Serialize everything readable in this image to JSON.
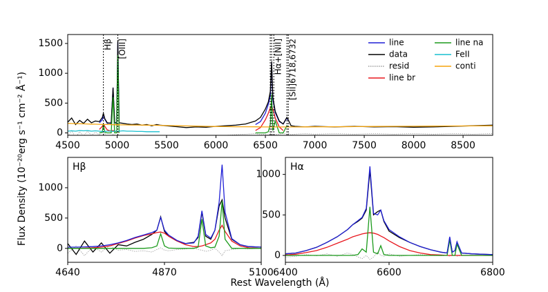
{
  "figure": {
    "ylabel": "Flux Density (10⁻²⁰erg s⁻¹ cm⁻² Å⁻¹)",
    "xlabel": "Rest Wavelength (Å)"
  },
  "chart_data": [
    {
      "type": "line",
      "legend": "upper right",
      "xlim": [
        4500,
        8800
      ],
      "xticks": [
        4500,
        5000,
        5500,
        6000,
        6500,
        7000,
        7500,
        8000,
        8500
      ],
      "ylim": [
        -40,
        1650
      ],
      "yticks": [
        0,
        500,
        1000,
        1500
      ],
      "annotations": [
        {
          "label": "Hβ",
          "x": [
            4861
          ]
        },
        {
          "label": "[OIII]",
          "x": [
            5007
          ]
        },
        {
          "label": "Hα+[NII]",
          "x": [
            6549,
            6563,
            6585
          ]
        },
        {
          "label": "[SII]6718,6732",
          "x": [
            6718,
            6732
          ]
        }
      ],
      "x": [
        4500,
        4540,
        4580,
        4620,
        4660,
        4700,
        4740,
        4780,
        4820,
        4850,
        4861,
        4875,
        4900,
        4940,
        4959,
        4975,
        4995,
        5007,
        5020,
        5060,
        5100,
        5150,
        5200,
        5250,
        5300,
        5350,
        5400,
        5430,
        5700,
        5800,
        5900,
        6000,
        6100,
        6200,
        6300,
        6400,
        6450,
        6500,
        6530,
        6550,
        6563,
        6575,
        6600,
        6640,
        6680,
        6717,
        6731,
        6760,
        6800,
        6900,
        7000,
        7200,
        7400,
        7600,
        7800,
        8000,
        8200,
        8400,
        8600,
        8800
      ],
      "series": [
        {
          "name": "line",
          "color": "#1f1fd6",
          "style": "solid",
          "values": [
            null,
            null,
            null,
            null,
            null,
            null,
            null,
            null,
            170,
            220,
            310,
            230,
            160,
            170,
            760,
            180,
            160,
            1520,
            180,
            null,
            null,
            null,
            null,
            null,
            null,
            null,
            null,
            null,
            null,
            null,
            null,
            null,
            null,
            null,
            null,
            140,
            190,
            330,
            480,
            620,
            1180,
            560,
            340,
            190,
            150,
            250,
            210,
            null,
            null,
            null,
            null,
            null,
            null,
            null,
            null,
            null,
            null,
            null,
            null,
            null
          ]
        },
        {
          "name": "data",
          "color": "#000000",
          "style": "solid",
          "values": [
            180,
            250,
            140,
            210,
            160,
            230,
            170,
            200,
            190,
            260,
            330,
            240,
            170,
            160,
            760,
            180,
            150,
            1540,
            170,
            160,
            150,
            140,
            150,
            130,
            140,
            120,
            140,
            130,
            90,
            100,
            95,
            110,
            120,
            130,
            150,
            200,
            260,
            400,
            520,
            700,
            1200,
            600,
            360,
            200,
            150,
            260,
            220,
            120,
            110,
            100,
            110,
            100,
            110,
            100,
            105,
            95,
            100,
            110,
            120,
            130
          ]
        },
        {
          "name": "resid",
          "color": "#999999",
          "style": "dotted",
          "values": [
            -60,
            40,
            -80,
            20,
            -50,
            30,
            -40,
            10,
            -30,
            20,
            -20,
            -10,
            -60,
            -70,
            -20,
            -40,
            -90,
            -30,
            -50,
            -60,
            -70,
            -50,
            -40,
            -60,
            -50,
            -70,
            -40,
            -60,
            -80,
            -60,
            -70,
            -50,
            -40,
            -30,
            -20,
            -10,
            -30,
            -20,
            -40,
            -10,
            -50,
            -20,
            -30,
            -20,
            -10,
            -20,
            -10,
            -30,
            -20,
            -10,
            -20,
            -10,
            -20,
            -10,
            -20,
            -10,
            -20,
            -10,
            -20,
            -10
          ]
        },
        {
          "name": "line br",
          "color": "#e8161d",
          "style": "solid",
          "values": [
            null,
            null,
            null,
            null,
            null,
            null,
            null,
            null,
            60,
            110,
            150,
            110,
            50,
            30,
            40,
            30,
            20,
            20,
            10,
            null,
            null,
            null,
            null,
            null,
            null,
            null,
            null,
            null,
            null,
            null,
            null,
            null,
            null,
            null,
            null,
            40,
            90,
            220,
            330,
            420,
            450,
            400,
            250,
            100,
            40,
            null,
            null,
            null,
            null,
            null,
            null,
            null,
            null,
            null,
            null,
            null,
            null,
            null,
            null,
            null
          ]
        },
        {
          "name": "line na",
          "color": "#1a9a1a",
          "style": "solid",
          "values": [
            null,
            null,
            null,
            null,
            null,
            null,
            null,
            null,
            0,
            10,
            150,
            10,
            0,
            0,
            600,
            0,
            0,
            1300,
            0,
            null,
            null,
            null,
            null,
            null,
            null,
            null,
            null,
            null,
            null,
            null,
            null,
            null,
            null,
            null,
            null,
            0,
            0,
            0,
            20,
            150,
            650,
            40,
            200,
            0,
            0,
            120,
            100,
            null,
            null,
            null,
            null,
            null,
            null,
            null,
            null,
            null,
            null,
            null,
            null,
            null
          ]
        },
        {
          "name": "FeII",
          "color": "#17bfcf",
          "style": "solid",
          "values": [
            30,
            35,
            30,
            40,
            35,
            40,
            30,
            35,
            30,
            25,
            20,
            25,
            30,
            30,
            25,
            30,
            30,
            25,
            30,
            35,
            30,
            30,
            25,
            25,
            20,
            20,
            20,
            20,
            null,
            null,
            null,
            null,
            null,
            null,
            null,
            null,
            null,
            null,
            null,
            null,
            null,
            null,
            null,
            null,
            null,
            null,
            null,
            null,
            null,
            null,
            null,
            null,
            null,
            null,
            null,
            null,
            null,
            null,
            null,
            null
          ]
        },
        {
          "name": "conti",
          "color": "#f5a40c",
          "style": "solid",
          "values": [
            160,
            158,
            156,
            154,
            152,
            150,
            148,
            146,
            144,
            142,
            142,
            141,
            140,
            139,
            138,
            137,
            137,
            136,
            136,
            135,
            134,
            133,
            132,
            131,
            130,
            129,
            128,
            127,
            118,
            114,
            111,
            108,
            106,
            104,
            103,
            102,
            101,
            100,
            100,
            100,
            100,
            100,
            100,
            100,
            100,
            100,
            100,
            100,
            100,
            101,
            102,
            104,
            106,
            108,
            110,
            112,
            114,
            116,
            118,
            120
          ]
        }
      ]
    },
    {
      "type": "line",
      "title": "Hβ",
      "xlim": [
        4640,
        5100
      ],
      "xticks": [
        4640,
        4870,
        5100
      ],
      "ylim": [
        -230,
        1500
      ],
      "yticks": [
        0,
        500,
        1000
      ],
      "x": [
        4640,
        4660,
        4680,
        4700,
        4720,
        4740,
        4760,
        4780,
        4800,
        4820,
        4840,
        4852,
        4861,
        4870,
        4880,
        4900,
        4920,
        4940,
        4950,
        4959,
        4968,
        4980,
        4990,
        5000,
        5007,
        5014,
        5030,
        5050,
        5070,
        5100
      ],
      "series": [
        {
          "color": "#999999",
          "style": "dotted",
          "values": [
            -80,
            40,
            -120,
            30,
            -60,
            50,
            -30,
            -20,
            -50,
            -40,
            -60,
            -20,
            10,
            -30,
            -40,
            -20,
            -10,
            10,
            -20,
            -30,
            -50,
            -30,
            0,
            -60,
            -120,
            -40,
            -20,
            0,
            -10,
            0
          ]
        },
        {
          "color": "#000000",
          "style": "solid",
          "values": [
            80,
            -100,
            120,
            -60,
            90,
            -80,
            60,
            40,
            100,
            150,
            230,
            300,
            520,
            280,
            200,
            120,
            80,
            100,
            180,
            600,
            200,
            150,
            300,
            700,
            800,
            500,
            150,
            60,
            30,
            20
          ]
        },
        {
          "color": "#e8161d",
          "style": "solid",
          "values": [
            0,
            0,
            5,
            10,
            20,
            40,
            80,
            120,
            170,
            210,
            240,
            260,
            270,
            250,
            200,
            120,
            60,
            30,
            30,
            40,
            60,
            90,
            150,
            300,
            380,
            280,
            120,
            40,
            10,
            0
          ]
        },
        {
          "color": "#1a9a1a",
          "style": "solid",
          "values": [
            0,
            0,
            0,
            0,
            0,
            0,
            0,
            0,
            0,
            0,
            10,
            40,
            240,
            40,
            5,
            0,
            0,
            0,
            20,
            480,
            40,
            10,
            20,
            200,
            780,
            150,
            0,
            0,
            0,
            0
          ]
        },
        {
          "color": "#1f1fd6",
          "style": "solid",
          "values": [
            20,
            20,
            25,
            30,
            40,
            60,
            90,
            130,
            180,
            220,
            260,
            300,
            510,
            300,
            220,
            130,
            80,
            90,
            200,
            620,
            230,
            170,
            300,
            760,
            1380,
            600,
            160,
            60,
            30,
            20
          ]
        }
      ]
    },
    {
      "type": "line",
      "title": "Hα",
      "xlim": [
        6400,
        6800
      ],
      "xticks": [
        6400,
        6600,
        6800
      ],
      "ylim": [
        -85,
        1210
      ],
      "yticks": [
        0,
        500,
        1000
      ],
      "x": [
        6400,
        6420,
        6440,
        6460,
        6480,
        6500,
        6520,
        6530,
        6540,
        6548,
        6556,
        6563,
        6570,
        6578,
        6584,
        6590,
        6600,
        6620,
        6640,
        6660,
        6680,
        6700,
        6712,
        6717,
        6722,
        6727,
        6731,
        6740,
        6760,
        6780,
        6800
      ],
      "series": [
        {
          "color": "#999999",
          "style": "dotted",
          "values": [
            -20,
            -10,
            10,
            -5,
            20,
            -10,
            30,
            10,
            -20,
            -40,
            0,
            -50,
            -20,
            40,
            0,
            -10,
            20,
            -10,
            0,
            10,
            0,
            -5,
            0,
            -10,
            0,
            0,
            -10,
            0,
            0,
            0,
            0
          ]
        },
        {
          "color": "#000000",
          "style": "solid",
          "values": [
            20,
            30,
            60,
            100,
            160,
            230,
            320,
            380,
            420,
            460,
            560,
            1050,
            500,
            540,
            560,
            420,
            300,
            220,
            160,
            110,
            70,
            40,
            30,
            220,
            40,
            60,
            160,
            30,
            20,
            15,
            10
          ]
        },
        {
          "color": "#e8161d",
          "style": "solid",
          "values": [
            5,
            15,
            35,
            60,
            100,
            150,
            200,
            230,
            250,
            265,
            275,
            280,
            275,
            260,
            240,
            220,
            180,
            110,
            60,
            30,
            10,
            5,
            0,
            0,
            0,
            0,
            0,
            0,
            0,
            0,
            0
          ]
        },
        {
          "color": "#1a9a1a",
          "style": "solid",
          "values": [
            0,
            0,
            0,
            0,
            0,
            0,
            0,
            0,
            10,
            80,
            40,
            600,
            40,
            20,
            120,
            10,
            0,
            0,
            0,
            0,
            0,
            0,
            0,
            190,
            0,
            0,
            140,
            0,
            0,
            0,
            0
          ]
        },
        {
          "color": "#1f1fd6",
          "style": "solid",
          "values": [
            20,
            30,
            60,
            100,
            160,
            230,
            320,
            380,
            430,
            470,
            580,
            1100,
            520,
            500,
            560,
            430,
            320,
            230,
            160,
            110,
            70,
            40,
            30,
            230,
            40,
            60,
            170,
            30,
            20,
            15,
            10
          ]
        }
      ]
    }
  ]
}
